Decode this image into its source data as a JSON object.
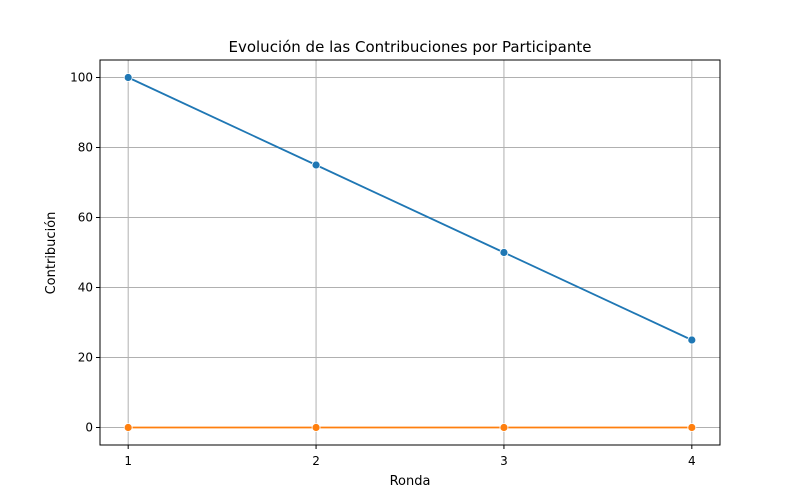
{
  "chart_data": {
    "type": "line",
    "title": "Evolución de las Contribuciones por Participante",
    "xlabel": "Ronda",
    "ylabel": "Contribución",
    "x": [
      1,
      2,
      3,
      4
    ],
    "xlim": [
      0.85,
      4.15
    ],
    "ylim": [
      -5,
      105
    ],
    "xticks": [
      1,
      2,
      3,
      4
    ],
    "yticks": [
      0,
      20,
      40,
      60,
      80,
      100
    ],
    "grid": true,
    "series": [
      {
        "values": [
          100,
          75,
          50,
          25
        ],
        "color": "#1f77b4",
        "marker": "circle"
      },
      {
        "values": [
          0,
          0,
          0,
          0
        ],
        "color": "#ff7f0e",
        "marker": "circle"
      }
    ]
  }
}
